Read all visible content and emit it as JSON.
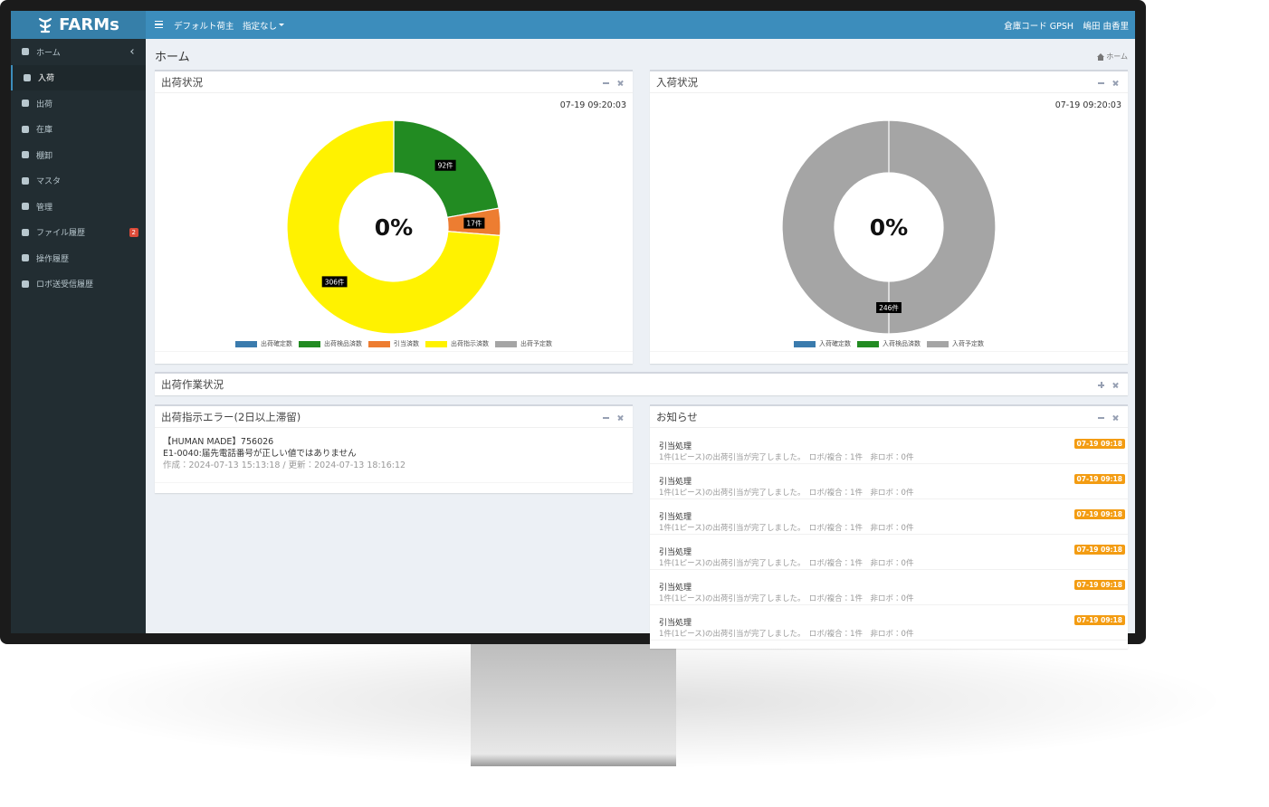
{
  "header": {
    "logo": "FARMs",
    "shipper": "デフォルト荷主",
    "filter": "指定なし",
    "warehouse": "倉庫コード GPSH",
    "user": "嶋田 由香里"
  },
  "sidebar": {
    "items": [
      {
        "label": "ホーム"
      },
      {
        "label": "入荷"
      },
      {
        "label": "出荷"
      },
      {
        "label": "在庫"
      },
      {
        "label": "棚卸"
      },
      {
        "label": "マスタ"
      },
      {
        "label": "管理"
      },
      {
        "label": "ファイル履歴",
        "badge": 2
      },
      {
        "label": "操作履歴"
      },
      {
        "label": "ロボ送受信履歴"
      }
    ],
    "active": 1
  },
  "page": {
    "title": "ホーム",
    "breadcrumb": "ホーム"
  },
  "shipping_chart": {
    "type": "donut",
    "title": "出荷状況",
    "timestamp": "07-19 09:20:03",
    "center_label": "0%",
    "categories": [
      "出荷確定数",
      "出荷検品済数",
      "引当済数",
      "出荷指示済数",
      "出荷予定数"
    ],
    "colors": [
      "#3a7bad",
      "#228b22",
      "#ed7d31",
      "#fff200",
      "#a5a5a5"
    ],
    "values": [
      0,
      92,
      17,
      306,
      0
    ],
    "value_labels": [
      null,
      "92件",
      "17件",
      "306件",
      null
    ]
  },
  "receiving_chart": {
    "type": "donut",
    "title": "入荷状況",
    "timestamp": "07-19 09:20:03",
    "center_label": "0%",
    "categories": [
      "入荷確定数",
      "入荷検品済数",
      "入荷予定数"
    ],
    "colors": [
      "#3a7bad",
      "#228b22",
      "#a5a5a5"
    ],
    "values": [
      0,
      0,
      246
    ],
    "value_labels": [
      null,
      null,
      "246件"
    ]
  },
  "work_status": {
    "title": "出荷作業状況"
  },
  "error_panel": {
    "title": "出荷指示エラー(2日以上滞留)",
    "entries": [
      {
        "order": "【HUMAN MADE】756026",
        "message": "E1-0040:届先電話番号が正しい値ではありません",
        "meta": "作成：2024-07-13 15:13:18 / 更新：2024-07-13 18:16:12"
      }
    ]
  },
  "notices": {
    "title": "お知らせ",
    "items": [
      {
        "title": "引当処理",
        "body": "1件(1ピース)の出荷引当が完了しました。　ロボ/複合：1件　非ロボ：0件",
        "time": "07-19 09:18"
      },
      {
        "title": "引当処理",
        "body": "1件(1ピース)の出荷引当が完了しました。　ロボ/複合：1件　非ロボ：0件",
        "time": "07-19 09:18"
      },
      {
        "title": "引当処理",
        "body": "1件(1ピース)の出荷引当が完了しました。　ロボ/複合：1件　非ロボ：0件",
        "time": "07-19 09:18"
      },
      {
        "title": "引当処理",
        "body": "1件(1ピース)の出荷引当が完了しました。　ロボ/複合：1件　非ロボ：0件",
        "time": "07-19 09:18"
      },
      {
        "title": "引当処理",
        "body": "1件(1ピース)の出荷引当が完了しました。　ロボ/複合：1件　非ロボ：0件",
        "time": "07-19 09:18"
      },
      {
        "title": "引当処理",
        "body": "1件(1ピース)の出荷引当が完了しました。　ロボ/複合：1件　非ロボ：0件",
        "time": "07-19 09:18"
      }
    ]
  }
}
